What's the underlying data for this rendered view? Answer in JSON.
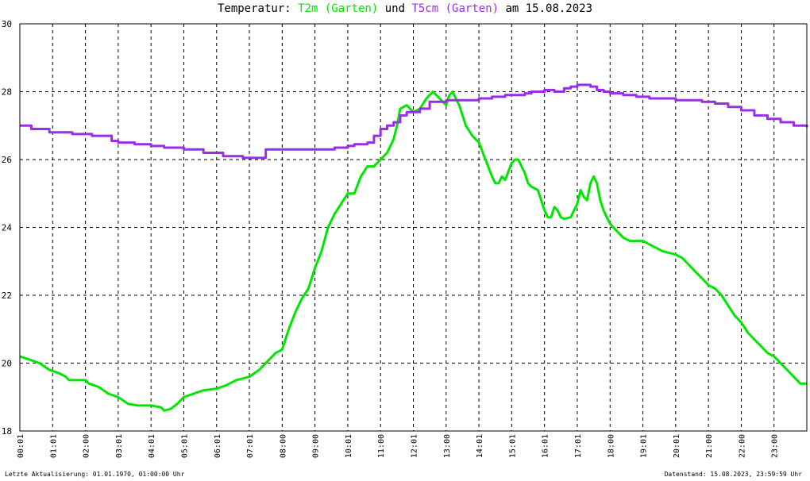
{
  "title": {
    "prefix": "Temperatur: ",
    "series1": "T2m (Garten)",
    "middle": " und ",
    "series2": "T5cm (Garten)",
    "suffix": " am 15.08.2023"
  },
  "footer": {
    "left": "Letzte Aktualisierung: 01.01.1970, 01:00:00 Uhr",
    "right": "Datenstand: 15.08.2023, 23:59:59 Uhr"
  },
  "chart_data": {
    "type": "line",
    "title": "Temperatur: T2m (Garten) und T5cm (Garten) am 15.08.2023",
    "xlim": [
      0,
      24
    ],
    "ylim": [
      18,
      30
    ],
    "yticks": [
      18,
      20,
      22,
      24,
      26,
      28,
      30
    ],
    "xtick_labels": [
      "00:01",
      "01:01",
      "02:00",
      "03:01",
      "04:01",
      "05:01",
      "06:01",
      "07:01",
      "08:00",
      "09:00",
      "10:01",
      "11:00",
      "12:01",
      "13:00",
      "14:01",
      "15:01",
      "16:01",
      "17:01",
      "18:00",
      "19:01",
      "20:01",
      "21:00",
      "22:00",
      "23:00"
    ],
    "grid": true,
    "series": [
      {
        "name": "T2m (Garten)",
        "color": "#00e600",
        "x": [
          0,
          0.3,
          0.6,
          0.9,
          1.2,
          1.4,
          1.5,
          2,
          2.1,
          2.4,
          2.7,
          3.0,
          3.3,
          3.6,
          4,
          4.3,
          4.4,
          4.6,
          4.8,
          5,
          5.3,
          5.6,
          6,
          6.3,
          6.6,
          7,
          7.3,
          7.6,
          7.8,
          8.0,
          8.2,
          8.4,
          8.6,
          8.8,
          9.0,
          9.2,
          9.4,
          9.6,
          9.8,
          10.0,
          10.2,
          10.4,
          10.6,
          10.8,
          11.0,
          11.2,
          11.4,
          11.5,
          11.6,
          11.8,
          12.0,
          12.2,
          12.4,
          12.6,
          12.8,
          13.0,
          13.1,
          13.2,
          13.4,
          13.6,
          13.8,
          14.0,
          14.2,
          14.4,
          14.5,
          14.6,
          14.7,
          14.8,
          15.0,
          15.1,
          15.2,
          15.3,
          15.4,
          15.5,
          15.6,
          15.8,
          16.0,
          16.1,
          16.2,
          16.3,
          16.4,
          16.5,
          16.6,
          16.8,
          17.0,
          17.1,
          17.2,
          17.3,
          17.4,
          17.5,
          17.6,
          17.7,
          17.8,
          18.0,
          18.2,
          18.4,
          18.6,
          18.8,
          19.0,
          19.2,
          19.4,
          19.6,
          19.8,
          20.0,
          20.2,
          20.4,
          20.6,
          20.8,
          21.0,
          21.2,
          21.4,
          21.6,
          21.8,
          22.0,
          22.2,
          22.4,
          22.6,
          22.8,
          23.0,
          23.2,
          23.4,
          23.6,
          23.8,
          24.0
        ],
        "values": [
          20.2,
          20.1,
          20.0,
          19.8,
          19.7,
          19.6,
          19.5,
          19.5,
          19.4,
          19.3,
          19.1,
          19.0,
          18.8,
          18.75,
          18.75,
          18.7,
          18.6,
          18.65,
          18.8,
          19.0,
          19.1,
          19.2,
          19.25,
          19.35,
          19.5,
          19.6,
          19.8,
          20.1,
          20.3,
          20.4,
          21.0,
          21.5,
          21.9,
          22.2,
          22.8,
          23.3,
          24.0,
          24.4,
          24.7,
          25.0,
          25.0,
          25.5,
          25.8,
          25.8,
          26.0,
          26.2,
          26.6,
          27.0,
          27.5,
          27.6,
          27.4,
          27.5,
          27.8,
          28.0,
          27.8,
          27.6,
          27.9,
          28.0,
          27.6,
          27.0,
          26.7,
          26.5,
          26.0,
          25.5,
          25.3,
          25.3,
          25.5,
          25.4,
          25.9,
          26.0,
          26.0,
          25.8,
          25.6,
          25.3,
          25.2,
          25.1,
          24.5,
          24.3,
          24.3,
          24.6,
          24.5,
          24.3,
          24.25,
          24.3,
          24.7,
          25.1,
          24.9,
          24.8,
          25.3,
          25.5,
          25.3,
          24.8,
          24.5,
          24.1,
          23.9,
          23.7,
          23.6,
          23.6,
          23.6,
          23.5,
          23.4,
          23.3,
          23.25,
          23.2,
          23.1,
          22.9,
          22.7,
          22.5,
          22.3,
          22.2,
          22.0,
          21.7,
          21.4,
          21.2,
          20.9,
          20.7,
          20.5,
          20.3,
          20.2,
          20.0,
          19.8,
          19.6,
          19.4,
          19.4
        ],
        "step": false
      },
      {
        "name": "T5cm (Garten)",
        "color": "#9a2ee6",
        "x": [
          0,
          0.35,
          0.9,
          1.6,
          2.2,
          2.8,
          3.0,
          3.5,
          4.0,
          4.4,
          5.0,
          5.6,
          6.2,
          6.5,
          6.8,
          7.0,
          7.3,
          7.5,
          8.0,
          8.6,
          9.2,
          9.6,
          10.0,
          10.2,
          10.6,
          10.8,
          11.0,
          11.2,
          11.4,
          11.6,
          11.8,
          12.0,
          12.2,
          12.5,
          12.8,
          13.0,
          13.2,
          13.5,
          14.0,
          14.4,
          14.8,
          15.0,
          15.2,
          15.4,
          15.6,
          15.8,
          16.0,
          16.3,
          16.6,
          16.8,
          17.0,
          17.2,
          17.4,
          17.6,
          17.8,
          18.0,
          18.4,
          18.8,
          19.2,
          19.6,
          20.0,
          20.4,
          20.8,
          21.2,
          21.6,
          22.0,
          22.4,
          22.8,
          23.2,
          23.6,
          24.0
        ],
        "values": [
          27.0,
          26.9,
          26.8,
          26.75,
          26.7,
          26.55,
          26.5,
          26.45,
          26.4,
          26.35,
          26.3,
          26.2,
          26.1,
          26.1,
          26.05,
          26.05,
          26.05,
          26.3,
          26.3,
          26.3,
          26.3,
          26.35,
          26.4,
          26.45,
          26.5,
          26.7,
          26.9,
          27.0,
          27.1,
          27.3,
          27.4,
          27.4,
          27.5,
          27.7,
          27.7,
          27.75,
          27.75,
          27.75,
          27.8,
          27.85,
          27.9,
          27.9,
          27.9,
          27.95,
          28.0,
          28.0,
          28.05,
          28.0,
          28.1,
          28.15,
          28.2,
          28.2,
          28.15,
          28.05,
          28.0,
          27.95,
          27.9,
          27.85,
          27.8,
          27.8,
          27.75,
          27.75,
          27.7,
          27.65,
          27.55,
          27.45,
          27.3,
          27.2,
          27.1,
          27.0,
          26.95
        ],
        "step": true
      }
    ]
  }
}
